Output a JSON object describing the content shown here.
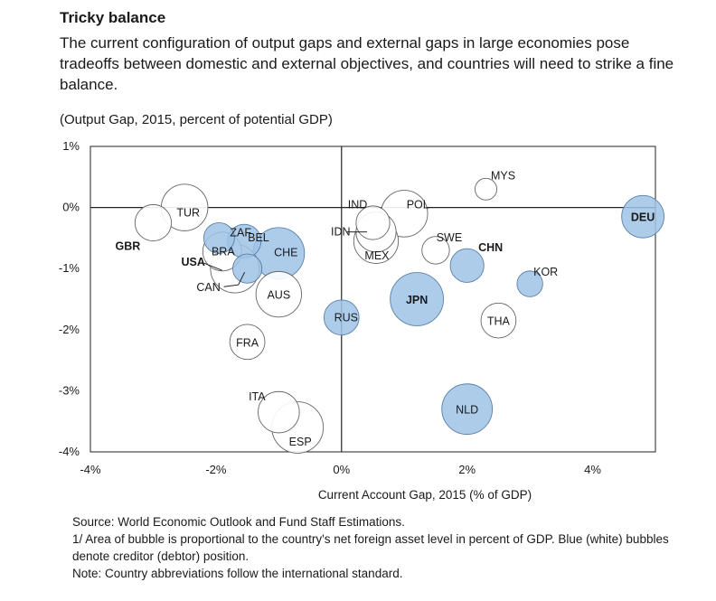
{
  "header": {
    "title": "Tricky balance",
    "subtitle": "The current configuration of output gaps and external gaps in large economies pose tradeoffs between domestic and external objectives, and countries will need to strike a fine balance.",
    "unit_note": "(Output Gap, 2015,  percent of potential GDP)"
  },
  "chart_data": {
    "type": "scatter",
    "subtype": "bubble",
    "title": "Tricky balance",
    "xlabel": "Current Account Gap, 2015 (% of GDP)",
    "ylabel": "(Output Gap, 2015,  percent of potential GDP)",
    "xlim": [
      -4,
      5
    ],
    "ylim": [
      -4,
      1
    ],
    "x_ticks": [
      -4,
      -2,
      0,
      2,
      4
    ],
    "x_tick_labels": [
      "-4%",
      "-2%",
      "0%",
      "2%",
      "4%"
    ],
    "y_ticks": [
      1,
      0,
      -1,
      -2,
      -3,
      -4
    ],
    "y_tick_labels": [
      "1%",
      "0%",
      "-1%",
      "-2%",
      "-3%",
      "-4%"
    ],
    "grid": false,
    "legend": "none",
    "creditor_color": "#9dc3e6",
    "debtor_color": "#ffffff",
    "points": [
      {
        "label": "GBR",
        "x": -3.0,
        "y": -0.25,
        "size": 1.4,
        "creditor": false,
        "bold": true
      },
      {
        "label": "TUR",
        "x": -2.5,
        "y": 0.0,
        "size": 2.3,
        "creditor": false,
        "bold": false
      },
      {
        "label": "ZAF",
        "x": -1.95,
        "y": -0.5,
        "size": 1.0,
        "creditor": true,
        "bold": false
      },
      {
        "label": "BEL",
        "x": -1.55,
        "y": -0.55,
        "size": 1.2,
        "creditor": true,
        "bold": false
      },
      {
        "label": "BRA",
        "x": -1.9,
        "y": -0.72,
        "size": 1.6,
        "creditor": false,
        "bold": false
      },
      {
        "label": "USA",
        "x": -1.7,
        "y": -1.0,
        "size": 2.5,
        "creditor": false,
        "bold": true
      },
      {
        "label": "CAN",
        "x": -1.5,
        "y": -1.0,
        "size": 0.9,
        "creditor": true,
        "bold": false
      },
      {
        "label": "CHE",
        "x": -1.0,
        "y": -0.75,
        "size": 2.8,
        "creditor": true,
        "bold": false
      },
      {
        "label": "AUS",
        "x": -1.0,
        "y": -1.42,
        "size": 2.2,
        "creditor": false,
        "bold": false
      },
      {
        "label": "FRA",
        "x": -1.5,
        "y": -2.2,
        "size": 1.3,
        "creditor": false,
        "bold": false
      },
      {
        "label": "ITA",
        "x": -1.0,
        "y": -3.35,
        "size": 1.8,
        "creditor": false,
        "bold": false
      },
      {
        "label": "ESP",
        "x": -0.7,
        "y": -3.6,
        "size": 2.8,
        "creditor": false,
        "bold": false
      },
      {
        "label": "RUS",
        "x": 0.0,
        "y": -1.8,
        "size": 1.3,
        "creditor": true,
        "bold": false
      },
      {
        "label": "IND",
        "x": 0.5,
        "y": -0.25,
        "size": 1.2,
        "creditor": false,
        "bold": false
      },
      {
        "label": "IDN",
        "x": 0.55,
        "y": -0.4,
        "size": 1.7,
        "creditor": false,
        "bold": false
      },
      {
        "label": "MEX",
        "x": 0.55,
        "y": -0.55,
        "size": 2.1,
        "creditor": false,
        "bold": false
      },
      {
        "label": "POL",
        "x": 1.0,
        "y": -0.1,
        "size": 2.3,
        "creditor": false,
        "bold": false
      },
      {
        "label": "SWE",
        "x": 1.5,
        "y": -0.7,
        "size": 0.8,
        "creditor": false,
        "bold": false
      },
      {
        "label": "JPN",
        "x": 1.2,
        "y": -1.5,
        "size": 3.0,
        "creditor": true,
        "bold": true
      },
      {
        "label": "CHN",
        "x": 2.0,
        "y": -0.95,
        "size": 1.2,
        "creditor": true,
        "bold": true
      },
      {
        "label": "MYS",
        "x": 2.3,
        "y": 0.3,
        "size": 0.5,
        "creditor": false,
        "bold": false
      },
      {
        "label": "KOR",
        "x": 3.0,
        "y": -1.25,
        "size": 0.7,
        "creditor": true,
        "bold": false
      },
      {
        "label": "THA",
        "x": 2.5,
        "y": -1.85,
        "size": 1.3,
        "creditor": false,
        "bold": false
      },
      {
        "label": "NLD",
        "x": 2.0,
        "y": -3.3,
        "size": 2.7,
        "creditor": true,
        "bold": false
      },
      {
        "label": "DEU",
        "x": 4.8,
        "y": -0.15,
        "size": 1.9,
        "creditor": true,
        "bold": true
      }
    ]
  },
  "footer": {
    "source": "Source: World Economic Outlook and Fund Staff Estimations.",
    "note1": "1/ Area of bubble is proportional to the country's net foreign asset level in percent of GDP. Blue (white) bubbles denote creditor (debtor) position.",
    "note2": "Note: Country abbreviations follow the international standard."
  }
}
